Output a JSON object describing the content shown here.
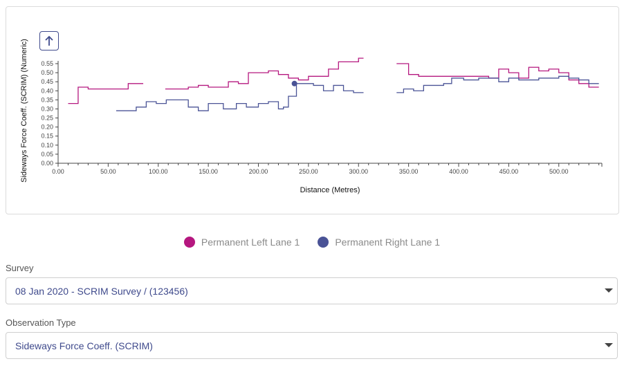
{
  "chart_data": {
    "type": "line",
    "step": true,
    "xlabel": "Distance (Metres)",
    "ylabel": "Sideways Force Coeff. (SCRIM) (Numeric)",
    "xlim": [
      0,
      543
    ],
    "ylim": [
      0,
      0.6
    ],
    "x_ticks": [
      "0.00",
      "50.00",
      "100.00",
      "150.00",
      "200.00",
      "250.00",
      "300.00",
      "350.00",
      "400.00",
      "450.00",
      "500.00"
    ],
    "y_ticks": [
      "0.00",
      "0.05",
      "0.10",
      "0.15",
      "0.20",
      "0.25",
      "0.30",
      "0.35",
      "0.40",
      "0.45",
      "0.50",
      "0.55"
    ],
    "grid": false,
    "series": [
      {
        "name": "Permanent Left Lane 1",
        "color": "#b5177f",
        "segments": [
          [
            [
              10,
              0.33
            ],
            [
              20,
              0.42
            ],
            [
              30,
              0.41
            ],
            [
              70,
              0.44
            ],
            [
              85,
              0.44
            ]
          ],
          [
            [
              107,
              0.41
            ],
            [
              120,
              0.41
            ],
            [
              130,
              0.42
            ],
            [
              140,
              0.43
            ],
            [
              150,
              0.42
            ],
            [
              170,
              0.45
            ],
            [
              180,
              0.44
            ],
            [
              190,
              0.5
            ],
            [
              210,
              0.51
            ],
            [
              220,
              0.49
            ],
            [
              230,
              0.47
            ],
            [
              240,
              0.46
            ],
            [
              250,
              0.48
            ],
            [
              270,
              0.52
            ],
            [
              280,
              0.56
            ],
            [
              300,
              0.58
            ],
            [
              305,
              0.58
            ]
          ],
          [
            [
              338,
              0.55
            ],
            [
              350,
              0.49
            ],
            [
              360,
              0.48
            ],
            [
              410,
              0.48
            ],
            [
              420,
              0.48
            ],
            [
              430,
              0.47
            ],
            [
              440,
              0.52
            ],
            [
              450,
              0.5
            ],
            [
              460,
              0.47
            ],
            [
              470,
              0.53
            ],
            [
              480,
              0.51
            ],
            [
              490,
              0.52
            ],
            [
              500,
              0.5
            ],
            [
              510,
              0.46
            ],
            [
              520,
              0.44
            ],
            [
              530,
              0.42
            ],
            [
              540,
              0.42
            ]
          ]
        ]
      },
      {
        "name": "Permanent Right Lane 1",
        "color": "#4a5396",
        "segments": [
          [
            [
              58,
              0.29
            ],
            [
              78,
              0.31
            ],
            [
              88,
              0.34
            ],
            [
              98,
              0.33
            ],
            [
              108,
              0.35
            ],
            [
              130,
              0.31
            ],
            [
              140,
              0.29
            ],
            [
              150,
              0.33
            ],
            [
              165,
              0.3
            ],
            [
              178,
              0.33
            ],
            [
              188,
              0.31
            ],
            [
              200,
              0.33
            ],
            [
              210,
              0.34
            ],
            [
              220,
              0.3
            ],
            [
              225,
              0.31
            ],
            [
              230,
              0.37
            ],
            [
              238,
              0.44
            ],
            [
              255,
              0.43
            ],
            [
              265,
              0.4
            ],
            [
              275,
              0.43
            ],
            [
              285,
              0.4
            ],
            [
              295,
              0.39
            ],
            [
              305,
              0.39
            ]
          ],
          [
            [
              338,
              0.39
            ],
            [
              345,
              0.41
            ],
            [
              355,
              0.4
            ],
            [
              365,
              0.43
            ],
            [
              375,
              0.43
            ],
            [
              385,
              0.44
            ],
            [
              393,
              0.47
            ],
            [
              405,
              0.46
            ],
            [
              420,
              0.47
            ],
            [
              430,
              0.47
            ],
            [
              440,
              0.45
            ],
            [
              450,
              0.47
            ],
            [
              460,
              0.46
            ],
            [
              480,
              0.47
            ],
            [
              500,
              0.48
            ],
            [
              510,
              0.47
            ],
            [
              520,
              0.46
            ],
            [
              530,
              0.44
            ],
            [
              540,
              0.44
            ]
          ]
        ]
      }
    ],
    "highlight_point": {
      "series": "Permanent Right Lane 1",
      "x": 236,
      "y": 0.44
    }
  },
  "legend": {
    "items": [
      {
        "label": "Permanent Left Lane 1",
        "color": "#b5177f"
      },
      {
        "label": "Permanent Right Lane 1",
        "color": "#4a5396"
      }
    ]
  },
  "controls": {
    "up_icon": "arrow-up-icon",
    "survey_label": "Survey",
    "survey_value": "08 Jan 2020 - SCRIM Survey / (123456)",
    "observation_label": "Observation Type",
    "observation_value": "Sideways Force Coeff. (SCRIM)"
  }
}
